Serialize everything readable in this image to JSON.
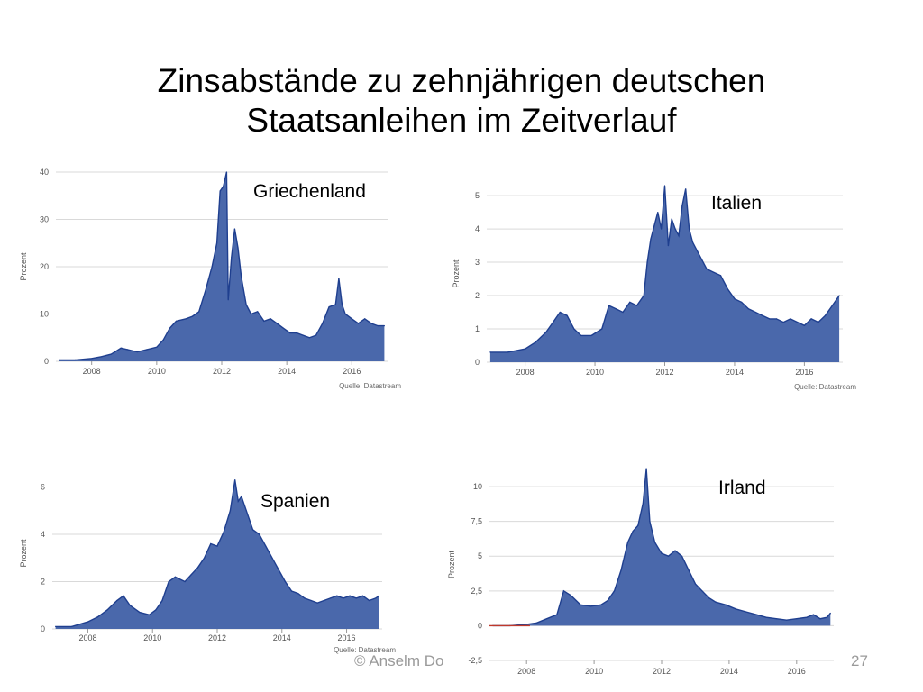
{
  "slide": {
    "title_line1": "Zinsabstände zu zehnjährigen deutschen",
    "title_line2": "Staatsanleihen im Zeitverlauf",
    "footer_left": "© Anselm Do",
    "page_number": "27"
  },
  "colors": {
    "area": "#4a68ab",
    "line": "#1f3f8f",
    "grid": "#d9d9d9",
    "red": "#c0392b"
  },
  "chart_data": [
    {
      "type": "area",
      "country": "Griechenland",
      "ylabel": "Prozent",
      "source": "Quelle: Datastream",
      "xlim": [
        2006.9,
        2017.1
      ],
      "ylim": [
        0,
        40
      ],
      "yticks": [
        0,
        10,
        20,
        30,
        40
      ],
      "ytick_labels": [
        "0",
        "10",
        "20",
        "30",
        "40"
      ],
      "xticks": [
        2008,
        2010,
        2012,
        2014,
        2016
      ],
      "xtick_labels": [
        "2008",
        "2010",
        "2012",
        "2014",
        "2016"
      ],
      "x": [
        2007.0,
        2007.5,
        2008.0,
        2008.3,
        2008.6,
        2008.9,
        2009.1,
        2009.4,
        2009.7,
        2010.0,
        2010.2,
        2010.4,
        2010.6,
        2010.9,
        2011.1,
        2011.3,
        2011.5,
        2011.7,
        2011.85,
        2011.95,
        2012.05,
        2012.15,
        2012.2,
        2012.3,
        2012.4,
        2012.5,
        2012.6,
        2012.75,
        2012.9,
        2013.1,
        2013.3,
        2013.5,
        2013.7,
        2013.9,
        2014.1,
        2014.3,
        2014.5,
        2014.7,
        2014.9,
        2015.1,
        2015.3,
        2015.5,
        2015.6,
        2015.7,
        2015.8,
        2016.0,
        2016.2,
        2016.4,
        2016.6,
        2016.8,
        2017.0
      ],
      "values": [
        0.3,
        0.3,
        0.6,
        1.0,
        1.5,
        2.8,
        2.5,
        2.0,
        2.5,
        3.0,
        4.5,
        7.0,
        8.5,
        9.0,
        9.5,
        10.5,
        15.0,
        20.0,
        25.0,
        36.0,
        37.0,
        40.0,
        13.0,
        22.0,
        28.0,
        24.0,
        18.0,
        12.0,
        10.0,
        10.5,
        8.5,
        9.0,
        8.0,
        7.0,
        6.0,
        6.0,
        5.5,
        5.0,
        5.5,
        8.0,
        11.5,
        12.0,
        17.5,
        12.0,
        10.0,
        9.0,
        8.0,
        9.0,
        8.0,
        7.5,
        7.5
      ]
    },
    {
      "type": "area",
      "country": "Italien",
      "ylabel": "Prozent",
      "source": "Quelle: Datastream",
      "xlim": [
        2006.9,
        2017.1
      ],
      "ylim": [
        0,
        5.3
      ],
      "yticks": [
        0,
        1,
        2,
        3,
        4,
        5
      ],
      "ytick_labels": [
        "0",
        "1",
        "2",
        "3",
        "4",
        "5"
      ],
      "xticks": [
        2008,
        2010,
        2012,
        2014,
        2016
      ],
      "xtick_labels": [
        "2008",
        "2010",
        "2012",
        "2014",
        "2016"
      ],
      "x": [
        2007.0,
        2007.5,
        2008.0,
        2008.3,
        2008.6,
        2008.8,
        2009.0,
        2009.2,
        2009.4,
        2009.6,
        2009.9,
        2010.2,
        2010.4,
        2010.6,
        2010.8,
        2011.0,
        2011.2,
        2011.4,
        2011.5,
        2011.6,
        2011.8,
        2011.9,
        2012.0,
        2012.1,
        2012.2,
        2012.3,
        2012.4,
        2012.5,
        2012.6,
        2012.7,
        2012.8,
        2013.0,
        2013.2,
        2013.4,
        2013.6,
        2013.8,
        2014.0,
        2014.2,
        2014.4,
        2014.6,
        2014.8,
        2015.0,
        2015.2,
        2015.4,
        2015.6,
        2015.8,
        2016.0,
        2016.2,
        2016.4,
        2016.6,
        2016.8,
        2017.0
      ],
      "values": [
        0.3,
        0.3,
        0.4,
        0.6,
        0.9,
        1.2,
        1.5,
        1.4,
        1.0,
        0.8,
        0.8,
        1.0,
        1.7,
        1.6,
        1.5,
        1.8,
        1.7,
        2.0,
        3.0,
        3.7,
        4.5,
        4.0,
        5.3,
        3.5,
        4.3,
        4.0,
        3.8,
        4.7,
        5.2,
        4.0,
        3.6,
        3.2,
        2.8,
        2.7,
        2.6,
        2.2,
        1.9,
        1.8,
        1.6,
        1.5,
        1.4,
        1.3,
        1.3,
        1.2,
        1.3,
        1.2,
        1.1,
        1.3,
        1.2,
        1.4,
        1.7,
        2.0
      ]
    },
    {
      "type": "area",
      "country": "Spanien",
      "ylabel": "Prozent",
      "source": "Quelle: Datastream",
      "xlim": [
        2006.9,
        2017.1
      ],
      "ylim": [
        0,
        6.4
      ],
      "yticks": [
        0,
        2,
        4,
        6
      ],
      "ytick_labels": [
        "0",
        "2",
        "4",
        "6"
      ],
      "xticks": [
        2008,
        2010,
        2012,
        2014,
        2016
      ],
      "xtick_labels": [
        "2008",
        "2010",
        "2012",
        "2014",
        "2016"
      ],
      "x": [
        2007.0,
        2007.5,
        2008.0,
        2008.3,
        2008.6,
        2008.9,
        2009.1,
        2009.3,
        2009.6,
        2009.9,
        2010.1,
        2010.3,
        2010.5,
        2010.7,
        2011.0,
        2011.2,
        2011.4,
        2011.6,
        2011.8,
        2012.0,
        2012.2,
        2012.4,
        2012.55,
        2012.65,
        2012.75,
        2012.9,
        2013.1,
        2013.3,
        2013.5,
        2013.7,
        2013.9,
        2014.1,
        2014.3,
        2014.5,
        2014.7,
        2014.9,
        2015.1,
        2015.3,
        2015.5,
        2015.7,
        2015.9,
        2016.1,
        2016.3,
        2016.5,
        2016.7,
        2016.9,
        2017.0
      ],
      "values": [
        0.1,
        0.1,
        0.3,
        0.5,
        0.8,
        1.2,
        1.4,
        1.0,
        0.7,
        0.6,
        0.8,
        1.2,
        2.0,
        2.2,
        2.0,
        2.3,
        2.6,
        3.0,
        3.6,
        3.5,
        4.1,
        5.0,
        6.3,
        5.4,
        5.6,
        5.0,
        4.2,
        4.0,
        3.5,
        3.0,
        2.5,
        2.0,
        1.6,
        1.5,
        1.3,
        1.2,
        1.1,
        1.2,
        1.3,
        1.4,
        1.3,
        1.4,
        1.3,
        1.4,
        1.2,
        1.3,
        1.4
      ]
    },
    {
      "type": "area",
      "country": "Irland",
      "ylabel": "Prozent",
      "source": "",
      "xlim": [
        2006.9,
        2017.1
      ],
      "ylim": [
        -2.5,
        11.3
      ],
      "yticks": [
        -2.5,
        0,
        2.5,
        5,
        7.5,
        10
      ],
      "ytick_labels": [
        "-2,5",
        "0",
        "2,5",
        "5",
        "7,5",
        "10"
      ],
      "xticks": [
        2008,
        2010,
        2012,
        2014,
        2016
      ],
      "xtick_labels": [
        "2008",
        "2010",
        "2012",
        "2014",
        "2016"
      ],
      "x": [
        2007.0,
        2007.5,
        2008.0,
        2008.3,
        2008.6,
        2008.9,
        2009.1,
        2009.3,
        2009.6,
        2009.9,
        2010.2,
        2010.4,
        2010.6,
        2010.8,
        2011.0,
        2011.15,
        2011.3,
        2011.45,
        2011.55,
        2011.65,
        2011.8,
        2012.0,
        2012.2,
        2012.4,
        2012.6,
        2012.8,
        2013.0,
        2013.2,
        2013.4,
        2013.6,
        2013.9,
        2014.2,
        2014.5,
        2014.8,
        2015.1,
        2015.4,
        2015.7,
        2016.0,
        2016.3,
        2016.5,
        2016.7,
        2016.9,
        2017.0
      ],
      "values": [
        0.0,
        0.0,
        0.1,
        0.2,
        0.5,
        0.8,
        2.5,
        2.2,
        1.5,
        1.4,
        1.5,
        1.8,
        2.5,
        4.0,
        6.0,
        6.8,
        7.2,
        8.8,
        11.3,
        7.5,
        6.0,
        5.2,
        5.0,
        5.4,
        5.0,
        4.0,
        3.0,
        2.5,
        2.0,
        1.7,
        1.5,
        1.2,
        1.0,
        0.8,
        0.6,
        0.5,
        0.4,
        0.5,
        0.6,
        0.8,
        0.5,
        0.6,
        0.9
      ]
    }
  ]
}
